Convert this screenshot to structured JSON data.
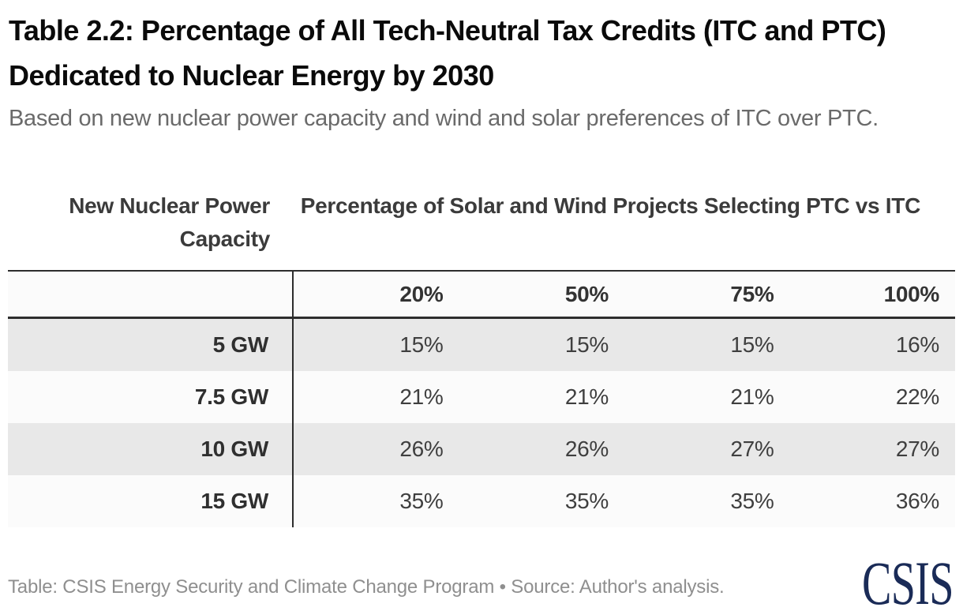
{
  "header": {
    "title": "Table 2.2: Percentage of All Tech-Neutral Tax Credits (ITC and PTC) Dedicated to Nuclear Energy by 2030",
    "subtitle": "Based on new nuclear power capacity and wind and solar preferences of ITC over PTC."
  },
  "table": {
    "group_headers": {
      "left": "New Nuclear Power Capacity",
      "right": "Percentage of Solar and Wind Projects Selecting PTC vs ITC"
    },
    "columns": [
      "20%",
      "50%",
      "75%",
      "100%"
    ],
    "rows": [
      {
        "label": "5 GW",
        "values": [
          "15%",
          "15%",
          "15%",
          "16%"
        ]
      },
      {
        "label": "7.5 GW",
        "values": [
          "21%",
          "21%",
          "21%",
          "22%"
        ]
      },
      {
        "label": "10 GW",
        "values": [
          "26%",
          "26%",
          "27%",
          "27%"
        ]
      },
      {
        "label": "15 GW",
        "values": [
          "35%",
          "35%",
          "35%",
          "36%"
        ]
      }
    ]
  },
  "footer": {
    "credit": "Table: CSIS Energy Security and Climate Change Program • Source: Author's analysis.",
    "logo_text": "CSIS"
  },
  "colors": {
    "logo_navy": "#1a2b57",
    "row_shade": "#e8e8e8",
    "row_plain": "#fbfbfb",
    "rule": "#2d2d2d",
    "title_text": "#0a0a0a",
    "subtitle_text": "#6a6a6a",
    "credit_text": "#8f8f8f"
  },
  "chart_data": {
    "type": "table",
    "title": "Table 2.2: Percentage of All Tech-Neutral Tax Credits (ITC and PTC) Dedicated to Nuclear Energy by 2030",
    "subtitle": "Based on new nuclear power capacity and wind and solar preferences of ITC over PTC.",
    "row_dimension": "New Nuclear Power Capacity",
    "column_dimension": "Percentage of Solar and Wind Projects Selecting PTC vs ITC",
    "columns": [
      "20%",
      "50%",
      "75%",
      "100%"
    ],
    "row_categories": [
      "5 GW",
      "7.5 GW",
      "10 GW",
      "15 GW"
    ],
    "values_percent": [
      [
        15,
        15,
        15,
        16
      ],
      [
        21,
        21,
        21,
        22
      ],
      [
        26,
        26,
        27,
        27
      ],
      [
        35,
        35,
        35,
        36
      ]
    ],
    "source": "Table: CSIS Energy Security and Climate Change Program • Source: Author's analysis.",
    "layout": "first column shows row labels; alternating rows shaded light gray; heavy rules above and below column-header row; vertical rule after label column"
  }
}
